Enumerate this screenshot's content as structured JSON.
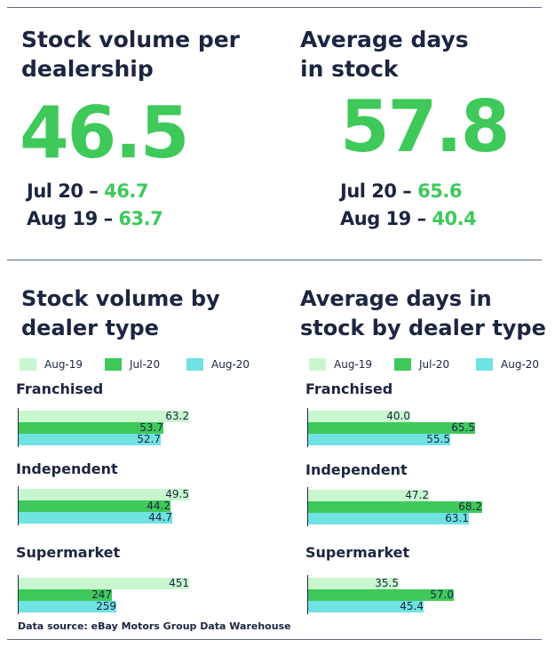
{
  "colors": {
    "aug19": "#c8f7cf",
    "jul20": "#3ec95a",
    "aug20": "#6fe2e2",
    "text": "#1c2541",
    "accent": "#3ec95a"
  },
  "kpis": [
    {
      "title_line1": "Stock volume per",
      "title_line2": "dealership",
      "value": "46.5",
      "cmp1_label": "Jul 20 – ",
      "cmp1_value": "46.7",
      "cmp2_label": "Aug 19 – ",
      "cmp2_value": "63.7"
    },
    {
      "title_line1": "Average days",
      "title_line2": "in stock",
      "value": "57.8",
      "cmp1_label": "Jul 20 – ",
      "cmp1_value": "65.6",
      "cmp2_label": "Aug 19 – ",
      "cmp2_value": "40.4"
    }
  ],
  "chart_data": [
    {
      "type": "bar",
      "orientation": "horizontal",
      "title": "Stock volume by dealer type",
      "title_line1": "Stock volume by",
      "title_line2": "dealer type",
      "legend": [
        "Aug-19",
        "Jul-20",
        "Aug-20"
      ],
      "legend_position": "top-left",
      "categories": [
        "Franchised",
        "Independent",
        "Supermarket"
      ],
      "series": [
        {
          "name": "Aug-19",
          "values": [
            63.2,
            49.5,
            451
          ]
        },
        {
          "name": "Jul-20",
          "values": [
            53.7,
            44.2,
            247
          ]
        },
        {
          "name": "Aug-20",
          "values": [
            52.7,
            44.7,
            259
          ]
        }
      ],
      "value_labels": [
        [
          "63.2",
          "53.7",
          "52.7"
        ],
        [
          "49.5",
          "44.2",
          "44.7"
        ],
        [
          "451",
          "247",
          "259"
        ]
      ],
      "per_category_scale": true,
      "grid": false
    },
    {
      "type": "bar",
      "orientation": "horizontal",
      "title": "Average days in stock by dealer type",
      "title_line1": "Average days in",
      "title_line2": "stock by dealer type",
      "legend": [
        "Aug-19",
        "Jul-20",
        "Aug-20"
      ],
      "legend_position": "top-left",
      "categories": [
        "Franchised",
        "Independent",
        "Supermarket"
      ],
      "series": [
        {
          "name": "Aug-19",
          "values": [
            40.0,
            47.2,
            35.5
          ]
        },
        {
          "name": "Jul-20",
          "values": [
            65.5,
            68.2,
            57.0
          ]
        },
        {
          "name": "Aug-20",
          "values": [
            55.5,
            63.1,
            45.4
          ]
        }
      ],
      "value_labels": [
        [
          "40.0",
          "65.5",
          "55.5"
        ],
        [
          "47.2",
          "68.2",
          "63.1"
        ],
        [
          "35.5",
          "57.0",
          "45.4"
        ]
      ],
      "per_category_scale": false,
      "grid": false
    }
  ],
  "source": "Data source: eBay Motors Group Data Warehouse"
}
